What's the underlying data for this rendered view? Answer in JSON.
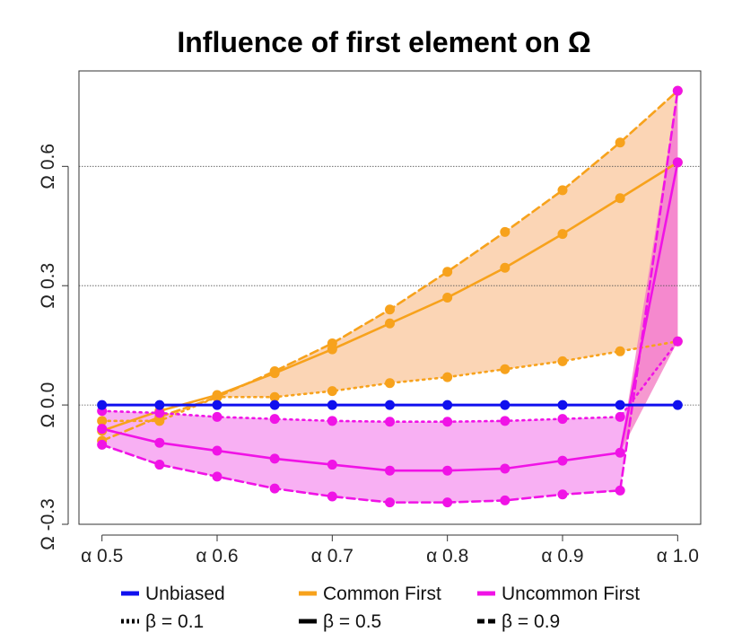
{
  "chart_data": {
    "type": "line",
    "title": "Influence of first element on Ω",
    "xlabel": "",
    "ylabel": "",
    "x": [
      0.5,
      0.55,
      0.6,
      0.65,
      0.7,
      0.75,
      0.8,
      0.85,
      0.9,
      0.95,
      1.0
    ],
    "x_tick_values": [
      0.5,
      0.6,
      0.7,
      0.8,
      0.9,
      1.0
    ],
    "x_tick_labels": [
      "α 0.5",
      "α 0.6",
      "α 0.7",
      "α 0.8",
      "α 0.9",
      "α 1.0"
    ],
    "y_tick_values": [
      -0.3,
      0.0,
      0.3,
      0.6
    ],
    "y_tick_labels": [
      "Ω -0.3",
      "Ω 0.0",
      "Ω 0.3",
      "Ω 0.6"
    ],
    "xlim": [
      0.48,
      1.02
    ],
    "ylim": [
      -0.3,
      0.84
    ],
    "grid": "horizontal dotted at y ticks",
    "legend_position": "bottom",
    "colors": {
      "unbiased": "#1010ee",
      "common": "#f7a21c",
      "uncommon": "#f013e6",
      "common_fill": "#fbd5b5",
      "uncommon_fill": "#f8b0f3",
      "uncommon_fill_dark": "#f47fc4"
    },
    "series": [
      {
        "name": "Unbiased",
        "group": "unbiased",
        "beta": 0.5,
        "color": "#1010ee",
        "values": [
          0.0,
          0.0,
          0.0,
          0.0,
          0.0,
          0.0,
          0.0,
          0.0,
          0.0,
          0.0,
          0.0
        ]
      },
      {
        "name": "Common First",
        "group": "common",
        "beta": 0.1,
        "color": "#f7a21c",
        "values": [
          -0.04,
          -0.04,
          0.02,
          0.02,
          0.035,
          0.055,
          0.07,
          0.09,
          0.11,
          0.135,
          0.16
        ]
      },
      {
        "name": "Common First",
        "group": "common",
        "beta": 0.5,
        "color": "#f7a21c",
        "values": [
          -0.065,
          -0.015,
          0.025,
          0.08,
          0.14,
          0.205,
          0.27,
          0.345,
          0.43,
          0.52,
          0.61
        ]
      },
      {
        "name": "Common First",
        "group": "common",
        "beta": 0.9,
        "color": "#f7a21c",
        "values": [
          -0.09,
          -0.03,
          0.02,
          0.085,
          0.155,
          0.24,
          0.335,
          0.435,
          0.54,
          0.66,
          0.79
        ]
      },
      {
        "name": "Uncommon First",
        "group": "uncommon",
        "beta": 0.1,
        "color": "#f013e6",
        "values": [
          -0.015,
          -0.02,
          -0.03,
          -0.035,
          -0.04,
          -0.042,
          -0.042,
          -0.04,
          -0.035,
          -0.03,
          0.16
        ]
      },
      {
        "name": "Uncommon First",
        "group": "uncommon",
        "beta": 0.5,
        "color": "#f013e6",
        "values": [
          -0.06,
          -0.095,
          -0.115,
          -0.135,
          -0.15,
          -0.165,
          -0.165,
          -0.16,
          -0.14,
          -0.12,
          0.61
        ]
      },
      {
        "name": "Uncommon First",
        "group": "uncommon",
        "beta": 0.9,
        "color": "#f013e6",
        "values": [
          -0.1,
          -0.15,
          -0.18,
          -0.21,
          -0.23,
          -0.245,
          -0.245,
          -0.24,
          -0.225,
          -0.215,
          0.79
        ]
      }
    ],
    "legend": {
      "colors": [
        {
          "label": "Unbiased",
          "color": "#1010ee"
        },
        {
          "label": "Common First",
          "color": "#f7a21c"
        },
        {
          "label": "Uncommon First",
          "color": "#f013e6"
        }
      ],
      "styles": [
        {
          "label": "β = 0.1",
          "style": "dotted"
        },
        {
          "label": "β = 0.5",
          "style": "solid"
        },
        {
          "label": "β = 0.9",
          "style": "dashed"
        }
      ]
    }
  }
}
